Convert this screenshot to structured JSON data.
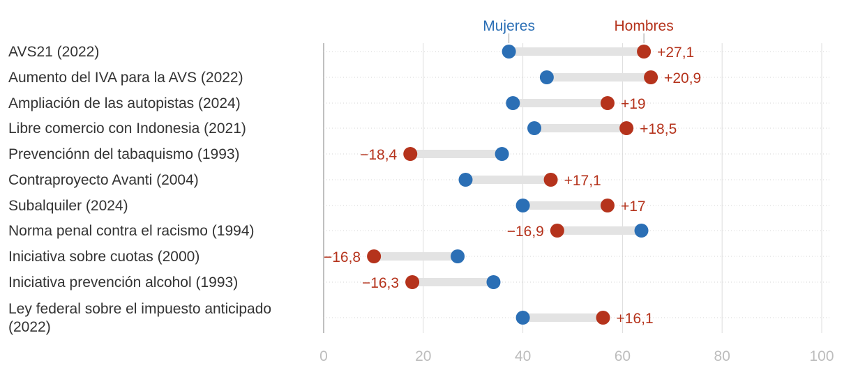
{
  "chart_data": {
    "type": "dumbbell",
    "xlim": [
      0,
      100
    ],
    "x_ticks": [
      0,
      20,
      40,
      60,
      80,
      100
    ],
    "legend": {
      "women": "Mujeres",
      "men": "Hombres"
    },
    "colors": {
      "women": "#2b6fb5",
      "men": "#b5331c",
      "connector": "#e3e3e3",
      "grid": "#dddddd",
      "baseline": "#bfbfbf"
    },
    "rows": [
      {
        "label_lines": [
          "AVS21 (2022)"
        ],
        "women": 37.2,
        "men": 64.3,
        "diff_label": "+27,1"
      },
      {
        "label_lines": [
          "Aumento del IVA para la AVS (2022)"
        ],
        "women": 44.8,
        "men": 65.7,
        "diff_label": "+20,9"
      },
      {
        "label_lines": [
          "Ampliación de las autopistas (2024)"
        ],
        "women": 38.0,
        "men": 57.0,
        "diff_label": "+19"
      },
      {
        "label_lines": [
          "Libre comercio con Indonesia (2021)"
        ],
        "women": 42.3,
        "men": 60.8,
        "diff_label": "+18,5"
      },
      {
        "label_lines": [
          "Prevenciónn del tabaquismo (1993)"
        ],
        "women": 35.8,
        "men": 17.4,
        "diff_label": "−18,4"
      },
      {
        "label_lines": [
          "Contraproyecto Avanti (2004)"
        ],
        "women": 28.5,
        "men": 45.6,
        "diff_label": "+17,1"
      },
      {
        "label_lines": [
          "Subalquiler (2024)"
        ],
        "women": 40.0,
        "men": 57.0,
        "diff_label": "+17"
      },
      {
        "label_lines": [
          "Norma penal contra el racismo (1994)"
        ],
        "women": 63.8,
        "men": 46.9,
        "diff_label": "−16,9"
      },
      {
        "label_lines": [
          "Iniciativa sobre cuotas (2000)"
        ],
        "women": 26.9,
        "men": 10.1,
        "diff_label": "−16,8"
      },
      {
        "label_lines": [
          "Iniciativa prevención alcohol (1993)"
        ],
        "women": 34.1,
        "men": 17.8,
        "diff_label": "−16,3"
      },
      {
        "label_lines": [
          "Ley federal sobre el impuesto anticipado",
          "(2022)"
        ],
        "women": 40.0,
        "men": 56.1,
        "diff_label": "+16,1"
      }
    ]
  }
}
